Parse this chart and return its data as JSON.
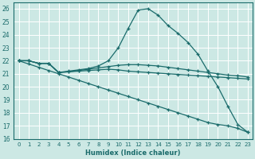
{
  "xlabel": "Humidex (Indice chaleur)",
  "xlim": [
    -0.5,
    23.5
  ],
  "ylim": [
    16,
    26.5
  ],
  "yticks": [
    16,
    17,
    18,
    19,
    20,
    21,
    22,
    23,
    24,
    25,
    26
  ],
  "xticks": [
    0,
    1,
    2,
    3,
    4,
    5,
    6,
    7,
    8,
    9,
    10,
    11,
    12,
    13,
    14,
    15,
    16,
    17,
    18,
    19,
    20,
    21,
    22,
    23
  ],
  "bg_color": "#cce8e4",
  "line_color": "#1a6b6b",
  "grid_color": "#ffffff",
  "lines": [
    {
      "x": [
        0,
        1,
        2,
        3,
        4,
        5,
        6,
        7,
        8,
        9,
        10,
        11,
        12,
        13,
        14,
        15,
        16,
        17,
        18,
        19,
        20,
        21,
        22,
        23
      ],
      "y": [
        22,
        22,
        21.8,
        21.8,
        21.1,
        21.15,
        21.2,
        21.25,
        21.3,
        21.35,
        21.3,
        21.2,
        21.15,
        21.1,
        21.05,
        21.0,
        20.95,
        20.9,
        20.85,
        20.8,
        20.75,
        20.7,
        20.65,
        20.6
      ]
    },
    {
      "x": [
        0,
        1,
        2,
        3,
        4,
        5,
        6,
        7,
        8,
        9,
        10,
        11,
        12,
        13,
        14,
        15,
        16,
        17,
        18,
        19,
        20,
        21,
        22,
        23
      ],
      "y": [
        22,
        22,
        21.8,
        21.8,
        21.1,
        21.15,
        21.25,
        21.35,
        21.45,
        21.55,
        21.65,
        21.7,
        21.7,
        21.65,
        21.6,
        21.5,
        21.4,
        21.3,
        21.2,
        21.1,
        21.0,
        20.9,
        20.85,
        20.75
      ]
    },
    {
      "x": [
        0,
        1,
        2,
        3,
        4,
        5,
        6,
        7,
        8,
        9,
        10,
        11,
        12,
        13,
        14,
        15,
        16,
        17,
        18,
        19,
        20,
        21,
        22,
        23
      ],
      "y": [
        22,
        22,
        21.8,
        21.8,
        21.1,
        21.2,
        21.3,
        21.4,
        21.6,
        22.0,
        23.0,
        24.5,
        25.9,
        26.0,
        25.5,
        24.7,
        24.1,
        23.4,
        22.5,
        21.2,
        20.0,
        18.5,
        17.1,
        16.5
      ]
    },
    {
      "x": [
        0,
        1,
        2,
        3,
        4,
        5,
        6,
        7,
        8,
        9,
        10,
        11,
        12,
        13,
        14,
        15,
        16,
        17,
        18,
        19,
        20,
        21,
        22,
        23
      ],
      "y": [
        22,
        21.75,
        21.5,
        21.25,
        21.0,
        20.75,
        20.5,
        20.25,
        20.0,
        19.75,
        19.5,
        19.25,
        19.0,
        18.75,
        18.5,
        18.25,
        18.0,
        17.75,
        17.5,
        17.25,
        17.1,
        17.0,
        16.8,
        16.5
      ]
    }
  ]
}
